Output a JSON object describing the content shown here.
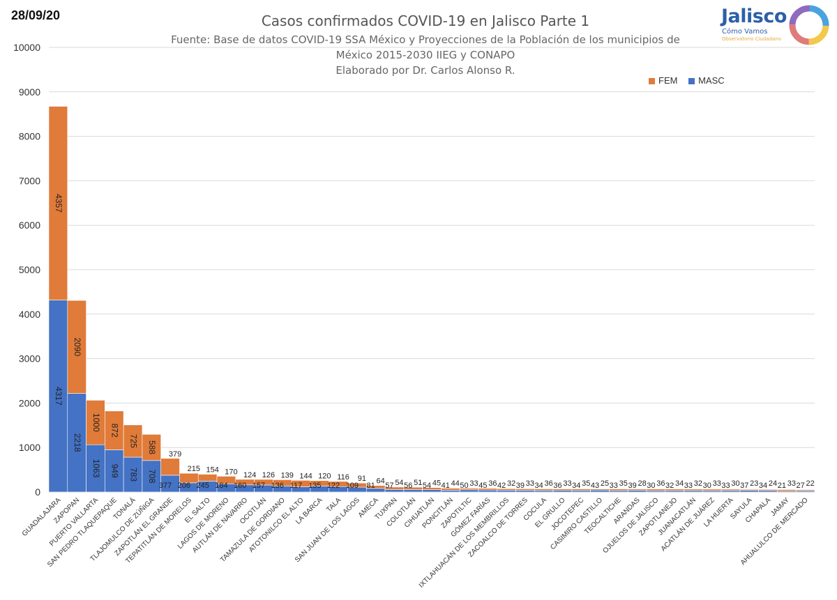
{
  "date_label": "28/09/20",
  "title": "Casos confirmados COVID-19 en Jalisco Parte 1",
  "subtitle_lines": [
    "Fuente: Base de datos COVID-19 SSA México y Proyecciones de la Población de los municipios de",
    "México 2015-2030 IIEG y CONAPO",
    "Elaborado por Dr. Carlos Alonso R."
  ],
  "logo": {
    "name": "Jalisco",
    "tagline": "Cómo Vamos",
    "sub": "Observatorio Ciudadano"
  },
  "colors": {
    "fem": "#e07b39",
    "masc": "#4472c4"
  },
  "chart_data": {
    "type": "bar",
    "stacked": true,
    "categories": [
      "GUADALAJARA",
      "ZAPOPAN",
      "PUERTO VALLARTA",
      "SAN PEDRO TLAQUEPAQUE",
      "TONALÁ",
      "TLAJOMULCO DE ZÚÑIGA",
      "ZAPOTLÁN EL GRANDE",
      "TEPATITLÁN DE MORELOS",
      "EL SALTO",
      "LAGOS DE MORENO",
      "AUTLÁN DE NAVARRO",
      "OCOTLÁN",
      "TAMAZULA DE GORDIANO",
      "ATOTONILCO EL ALTO",
      "LA BARCA",
      "TALA",
      "SAN JUAN DE LOS LAGOS",
      "AMECA",
      "TUXPAN",
      "COLOTLÁN",
      "CIHUATLÁN",
      "PONCITLÁN",
      "ZAPOTILTIC",
      "GÓMEZ FARÍAS",
      "IXTLAHUACÁN DE LOS MEMBRILLOS",
      "ZACOALCO DE TORRES",
      "COCULA",
      "EL GRULLO",
      "JOCOTEPEC",
      "CASIMIRO CASTILLO",
      "TEOCALTICHE",
      "ARANDAS",
      "OJUELOS DE JALISCO",
      "ZAPOTLANEJO",
      "JUANACATLÁN",
      "ACATLÁN DE JUÁREZ",
      "LA HUERTA",
      "SAYULA",
      "CHAPALA",
      "JAMAY",
      "AHUALULCO DE MERCADO"
    ],
    "series": [
      {
        "name": "MASC",
        "values": [
          4317,
          2218,
          1063,
          949,
          783,
          708,
          377,
          206,
          245,
          184,
          160,
          157,
          136,
          117,
          135,
          122,
          109,
          81,
          57,
          56,
          54,
          41,
          50,
          45,
          42,
          39,
          34,
          36,
          34,
          43,
          33,
          39,
          30,
          32,
          33,
          30,
          33,
          37,
          34,
          21,
          27
        ]
      },
      {
        "name": "FEM",
        "values": [
          4357,
          2090,
          1000,
          872,
          725,
          588,
          379,
          215,
          154,
          170,
          124,
          126,
          139,
          144,
          120,
          116,
          91,
          64,
          54,
          51,
          45,
          44,
          33,
          36,
          32,
          33,
          36,
          33,
          35,
          25,
          35,
          28,
          36,
          34,
          32,
          33,
          30,
          23,
          24,
          33,
          22
        ]
      }
    ],
    "legend": [
      "FEM",
      "MASC"
    ],
    "legend_position": "top-right",
    "ylim": [
      0,
      10000
    ],
    "yticks": [
      0,
      1000,
      2000,
      3000,
      4000,
      5000,
      6000,
      7000,
      8000,
      9000,
      10000
    ],
    "grid": true,
    "xlabel": "",
    "ylabel": ""
  }
}
